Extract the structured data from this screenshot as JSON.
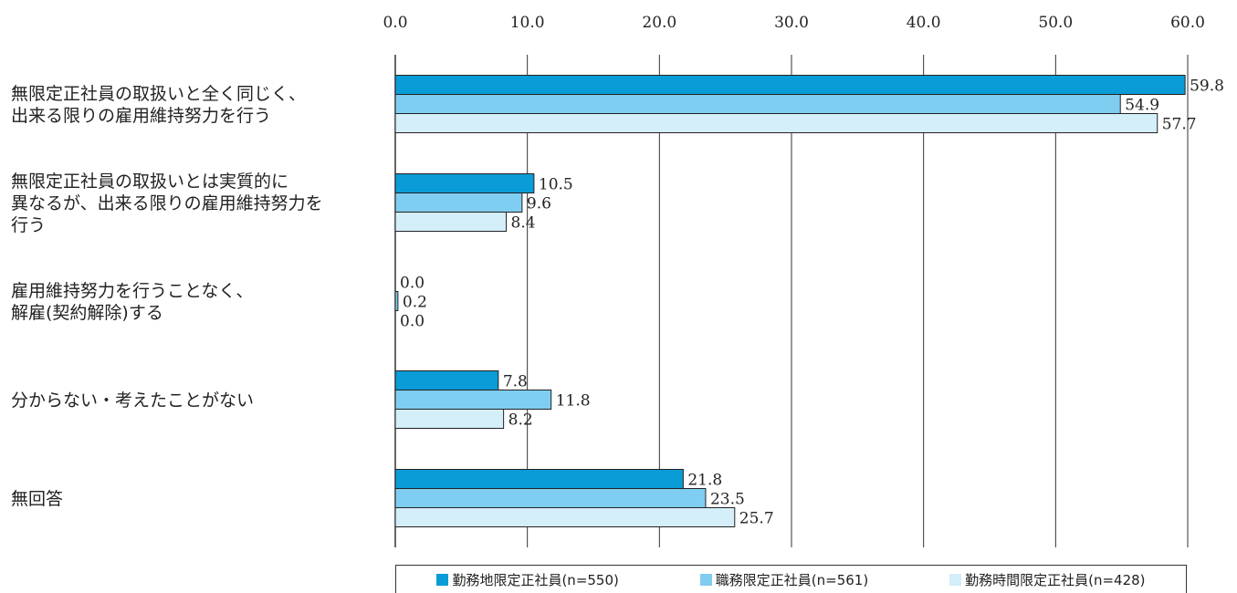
{
  "chart_data": {
    "type": "bar",
    "orientation": "horizontal",
    "xlim": [
      0,
      60
    ],
    "x_ticks": [
      "0.0",
      "10.0",
      "20.0",
      "30.0",
      "40.0",
      "50.0",
      "60.0"
    ],
    "grid": true,
    "categories": [
      [
        "無限定正社員の取扱いと全く同じく、",
        "出来る限りの雇用維持努力を行う"
      ],
      [
        "無限定正社員の取扱いとは実質的に",
        "異なるが、出来る限りの雇用維持努力を",
        "行う"
      ],
      [
        "雇用維持努力を行うことなく、",
        "解雇(契約解除)する"
      ],
      [
        "分からない・考えたことがない"
      ],
      [
        "無回答"
      ]
    ],
    "series": [
      {
        "name": "勤務地限定正社員(n=550)",
        "color": "#0a9cd6",
        "values": [
          59.8,
          10.5,
          0.0,
          7.8,
          21.8
        ],
        "labels": [
          "59.8",
          "10.5",
          "0.0",
          "7.8",
          "21.8"
        ]
      },
      {
        "name": "職務限定正社員(n=561)",
        "color": "#7fcdf0",
        "values": [
          54.9,
          9.6,
          0.2,
          11.8,
          23.5
        ],
        "labels": [
          "54.9",
          "9.6",
          "0.2",
          "11.8",
          "23.5"
        ]
      },
      {
        "name": "勤務時間限定正社員(n=428)",
        "color": "#d4eefa",
        "values": [
          57.7,
          8.4,
          0.0,
          8.2,
          25.7
        ],
        "labels": [
          "57.7",
          "8.4",
          "0.0",
          "8.2",
          "25.7"
        ]
      }
    ],
    "legend_position": "bottom"
  }
}
